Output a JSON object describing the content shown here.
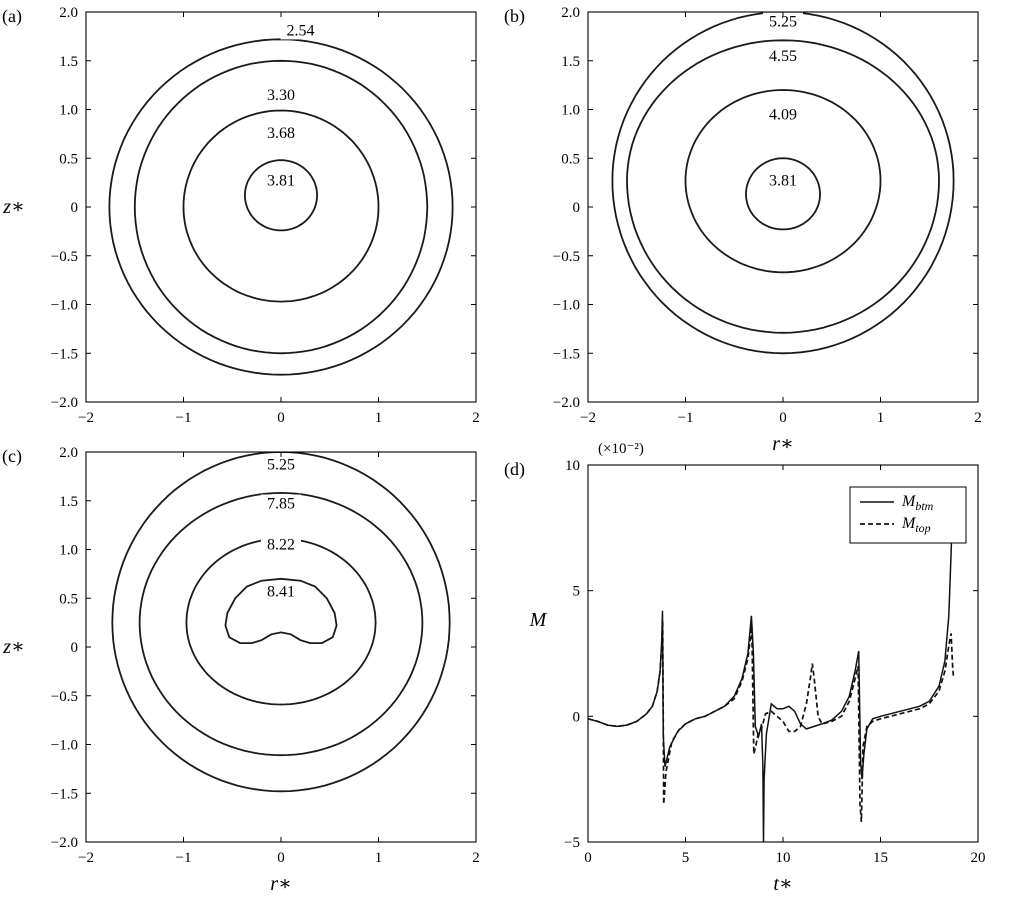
{
  "chart_data": [
    {
      "id": "a",
      "type": "contour",
      "panel_label": "(a)",
      "xlabel": "",
      "ylabel": "z∗",
      "xlim": [
        -2,
        2
      ],
      "ylim": [
        -2,
        2
      ],
      "xticks": [
        -2,
        -1,
        0,
        1,
        2
      ],
      "yticks": [
        -2.0,
        -1.5,
        -1.0,
        -0.5,
        0,
        0.5,
        1.0,
        1.5,
        2.0
      ],
      "xtick_labels": [
        "−2",
        "−1",
        "0",
        "1",
        "2"
      ],
      "ytick_labels": [
        "−2.0",
        "−1.5",
        "−1.0",
        "−0.5",
        "0",
        "0.5",
        "1.0",
        "1.5",
        "2.0"
      ],
      "contours": [
        {
          "label": "2.54",
          "shape": "ellipse",
          "cx": 0,
          "cy": 0,
          "rx": 1.76,
          "ry_top": 1.72,
          "ry_bottom": 1.72,
          "label_at": [
            0.2,
            1.76
          ]
        },
        {
          "label": "3.30",
          "shape": "ellipse",
          "cx": 0,
          "cy": 0,
          "rx": 1.5,
          "ry_top": 1.5,
          "ry_bottom": 1.5,
          "label_at": [
            0.0,
            1.1
          ]
        },
        {
          "label": "3.68",
          "shape": "ellipse",
          "cx": 0,
          "cy": 0,
          "rx": 1.0,
          "ry_top": 0.99,
          "ry_bottom": 0.97,
          "label_at": [
            0.0,
            0.71
          ]
        },
        {
          "label": "3.81",
          "shape": "ellipse",
          "cx": 0.0,
          "cy": 0.12,
          "rx": 0.37,
          "ry_top": 0.36,
          "ry_bottom": 0.36,
          "label_at": [
            0.0,
            0.22
          ]
        }
      ]
    },
    {
      "id": "b",
      "type": "contour",
      "panel_label": "(b)",
      "xlabel": "r∗",
      "ylabel": "",
      "xlim": [
        -2,
        2
      ],
      "ylim": [
        -2,
        2
      ],
      "xticks": [
        -2,
        -1,
        0,
        1,
        2
      ],
      "yticks": [
        -2.0,
        -1.5,
        -1.0,
        -0.5,
        0,
        0.5,
        1.0,
        1.5,
        2.0
      ],
      "xtick_labels": [
        "−2",
        "−1",
        "0",
        "1",
        "2"
      ],
      "ytick_labels": [
        "−2.0",
        "−1.5",
        "−1.0",
        "−0.5",
        "0",
        "0.5",
        "1.0",
        "1.5",
        "2.0"
      ],
      "contours": [
        {
          "label": "5.25",
          "shape": "ellipse",
          "cx": 0,
          "cy": 0.27,
          "rx": 1.75,
          "ry_top": 1.73,
          "ry_bottom": 1.77,
          "label_at": [
            0.0,
            1.85
          ]
        },
        {
          "label": "4.55",
          "shape": "ellipse",
          "cx": 0,
          "cy": 0.27,
          "rx": 1.6,
          "ry_top": 1.44,
          "ry_bottom": 1.56,
          "label_at": [
            0.0,
            1.5
          ]
        },
        {
          "label": "4.09",
          "shape": "ellipse",
          "cx": 0,
          "cy": 0.27,
          "rx": 1.0,
          "ry_top": 0.93,
          "ry_bottom": 0.94,
          "label_at": [
            0.0,
            0.9
          ]
        },
        {
          "label": "3.81",
          "shape": "ellipse",
          "cx": 0,
          "cy": 0.13,
          "rx": 0.38,
          "ry_top": 0.37,
          "ry_bottom": 0.36,
          "label_at": [
            0.0,
            0.22
          ]
        }
      ]
    },
    {
      "id": "c",
      "type": "contour",
      "panel_label": "(c)",
      "xlabel": "r∗",
      "ylabel": "z∗",
      "xlim": [
        -2,
        2
      ],
      "ylim": [
        -2,
        2
      ],
      "xticks": [
        -2,
        -1,
        0,
        1,
        2
      ],
      "yticks": [
        -2.0,
        -1.5,
        -1.0,
        -0.5,
        0,
        0.5,
        1.0,
        1.5,
        2.0
      ],
      "xtick_labels": [
        "−2",
        "−1",
        "0",
        "1",
        "2"
      ],
      "ytick_labels": [
        "−2.0",
        "−1.5",
        "−1.0",
        "−0.5",
        "0",
        "0.5",
        "1.0",
        "1.5",
        "2.0"
      ],
      "contours": [
        {
          "label": "5.25",
          "shape": "ellipse",
          "cx": 0,
          "cy": 0.25,
          "rx": 1.73,
          "ry_top": 1.75,
          "ry_bottom": 1.73,
          "label_at": [
            0.0,
            1.82
          ]
        },
        {
          "label": "7.85",
          "shape": "ellipse",
          "cx": 0,
          "cy": 0.25,
          "rx": 1.45,
          "ry_top": 1.33,
          "ry_bottom": 1.36,
          "label_at": [
            0.0,
            1.42
          ]
        },
        {
          "label": "8.22",
          "shape": "ellipse",
          "cx": 0,
          "cy": 0.25,
          "rx": 0.97,
          "ry_top": 0.86,
          "ry_bottom": 0.84,
          "label_at": [
            0.0,
            1.0
          ]
        },
        {
          "label": "8.41",
          "shape": "kidney",
          "label_at": [
            0.0,
            0.52
          ]
        }
      ]
    },
    {
      "id": "d",
      "type": "line",
      "panel_label": "(d)",
      "xlabel": "t∗",
      "ylabel": "M",
      "multiplier_label": "(×10⁻²)",
      "xlim": [
        0,
        20
      ],
      "ylim": [
        -5,
        10
      ],
      "xticks": [
        0,
        5,
        10,
        15,
        20
      ],
      "yticks": [
        -5,
        0,
        5,
        10
      ],
      "xtick_labels": [
        "0",
        "5",
        "10",
        "15",
        "20"
      ],
      "ytick_labels": [
        "−5",
        "0",
        "5",
        "10"
      ],
      "legend_position": "top-right",
      "series": [
        {
          "name": "M",
          "sub": "btm",
          "style": "solid",
          "x": [
            0,
            0.5,
            1,
            1.5,
            2,
            2.5,
            3,
            3.3,
            3.55,
            3.7,
            3.78,
            3.82,
            3.86,
            3.95,
            4.2,
            4.6,
            5,
            5.5,
            6,
            6.5,
            7,
            7.5,
            7.9,
            8.2,
            8.38,
            8.48,
            8.58,
            8.75,
            8.9,
            8.97,
            9.0,
            9.03,
            9.15,
            9.4,
            9.7,
            10.0,
            10.3,
            10.6,
            10.9,
            11.2,
            11.6,
            12,
            12.5,
            13,
            13.4,
            13.7,
            13.88,
            13.98,
            14.05,
            14.15,
            14.3,
            14.6,
            15,
            15.5,
            16,
            16.5,
            17,
            17.5,
            18,
            18.3,
            18.5,
            18.62,
            18.68,
            18.72
          ],
          "y": [
            -0.1,
            -0.2,
            -0.35,
            -0.4,
            -0.35,
            -0.2,
            0.1,
            0.4,
            1.0,
            1.8,
            3.0,
            4.2,
            -0.8,
            -2.0,
            -1.2,
            -0.6,
            -0.3,
            -0.1,
            0.0,
            0.2,
            0.4,
            0.8,
            1.5,
            2.5,
            4.0,
            2.5,
            -0.4,
            -0.8,
            -0.3,
            -2.0,
            -5.0,
            -2.5,
            -0.7,
            0.5,
            0.3,
            0.3,
            0.4,
            0.2,
            -0.3,
            -0.5,
            -0.4,
            -0.3,
            -0.15,
            0.2,
            0.8,
            1.8,
            2.6,
            -1.8,
            -2.5,
            -1.5,
            -0.5,
            -0.1,
            0.0,
            0.1,
            0.2,
            0.3,
            0.4,
            0.6,
            1.2,
            2.2,
            4.0,
            6.5,
            8.0,
            9.1
          ]
        },
        {
          "name": "M",
          "sub": "top",
          "style": "dashed",
          "x": [
            0,
            0.5,
            1,
            1.5,
            2,
            2.5,
            3,
            3.3,
            3.55,
            3.7,
            3.78,
            3.83,
            3.88,
            4.0,
            4.3,
            4.7,
            5,
            5.5,
            6,
            6.5,
            7,
            7.5,
            7.9,
            8.2,
            8.4,
            8.5,
            8.6,
            8.75,
            8.9,
            9.1,
            9.4,
            9.7,
            10.0,
            10.3,
            10.6,
            10.9,
            11.2,
            11.4,
            11.5,
            11.6,
            11.8,
            12,
            12.5,
            13,
            13.4,
            13.7,
            13.85,
            13.95,
            14.02,
            14.1,
            14.3,
            14.6,
            15,
            15.5,
            16,
            16.5,
            17,
            17.5,
            18,
            18.3,
            18.5,
            18.62,
            18.7,
            18.75
          ],
          "y": [
            -0.1,
            -0.2,
            -0.35,
            -0.4,
            -0.35,
            -0.2,
            0.1,
            0.4,
            1.0,
            1.8,
            2.8,
            3.8,
            -3.5,
            -2.2,
            -1.0,
            -0.5,
            -0.3,
            -0.1,
            0.0,
            0.2,
            0.4,
            0.7,
            1.4,
            2.3,
            3.6,
            -1.5,
            -1.2,
            -0.6,
            -0.5,
            0.1,
            0.2,
            0.0,
            -0.2,
            -0.6,
            -0.6,
            -0.4,
            0.5,
            1.5,
            2.1,
            1.5,
            0.0,
            -0.3,
            -0.2,
            0.0,
            0.6,
            1.5,
            2.0,
            -3.5,
            -4.2,
            -1.2,
            -0.4,
            -0.2,
            -0.1,
            0.0,
            0.1,
            0.2,
            0.3,
            0.5,
            1.0,
            1.8,
            2.8,
            3.3,
            2.0,
            1.5
          ]
        }
      ]
    }
  ]
}
